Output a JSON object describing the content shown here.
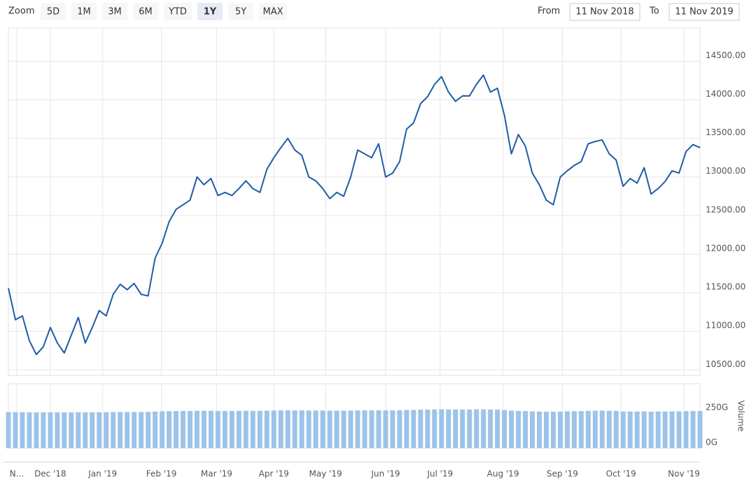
{
  "range_selector": {
    "zoom_label": "Zoom",
    "buttons": [
      "5D",
      "1M",
      "3M",
      "6M",
      "YTD",
      "1Y",
      "5Y",
      "MAX"
    ],
    "selected": "1Y",
    "from_label": "From",
    "from": "11 Nov 2018",
    "to_label": "To",
    "to": "11 Nov 2019"
  },
  "chart_data": {
    "type": "line",
    "xlim": [
      0,
      99
    ],
    "xticks": [
      {
        "value": 1.2,
        "label": "N..."
      },
      {
        "value": 6,
        "label": "Dec '18"
      },
      {
        "value": 13.5,
        "label": "Jan '19"
      },
      {
        "value": 21.9,
        "label": "Feb '19"
      },
      {
        "value": 29.8,
        "label": "Mar '19"
      },
      {
        "value": 38,
        "label": "Apr '19"
      },
      {
        "value": 45.4,
        "label": "May '19"
      },
      {
        "value": 54,
        "label": "Jun '19"
      },
      {
        "value": 61.8,
        "label": "Jul '19"
      },
      {
        "value": 70.8,
        "label": "Aug '19"
      },
      {
        "value": 79.3,
        "label": "Sep '19"
      },
      {
        "value": 87.7,
        "label": "Oct '19"
      },
      {
        "value": 96.7,
        "label": "Nov '19"
      }
    ],
    "ylim": [
      10430,
      14930
    ],
    "yticks": [
      {
        "value": 10500,
        "label": "10500.00"
      },
      {
        "value": 11000,
        "label": "11000.00"
      },
      {
        "value": 11500,
        "label": "11500.00"
      },
      {
        "value": 12000,
        "label": "12000.00"
      },
      {
        "value": 12500,
        "label": "12500.00"
      },
      {
        "value": 13000,
        "label": "13000.00"
      },
      {
        "value": 13500,
        "label": "13500.00"
      },
      {
        "value": 14000,
        "label": "14000.00"
      },
      {
        "value": 14500,
        "label": "14500.00"
      }
    ],
    "y2label": "Volume",
    "y2lim": [
      0,
      460
    ],
    "y2ticks": [
      {
        "value": 0,
        "label": "0G"
      },
      {
        "value": 250,
        "label": "250G"
      }
    ],
    "grid": true,
    "series": [
      {
        "color": "#1f5ca8",
        "values": [
          11560,
          11150,
          11200,
          10880,
          10700,
          10800,
          11050,
          10850,
          10720,
          10950,
          11180,
          10850,
          11050,
          11270,
          11200,
          11480,
          11610,
          11540,
          11620,
          11480,
          11460,
          11950,
          12140,
          12420,
          12580,
          12640,
          12700,
          13000,
          12900,
          12980,
          12760,
          12800,
          12760,
          12850,
          12950,
          12850,
          12800,
          13100,
          13250,
          13380,
          13500,
          13350,
          13280,
          13000,
          12950,
          12850,
          12720,
          12800,
          12750,
          13000,
          13350,
          13300,
          13250,
          13430,
          13000,
          13050,
          13200,
          13620,
          13700,
          13950,
          14040,
          14200,
          14300,
          14100,
          13980,
          14050,
          14050,
          14200,
          14320,
          14100,
          14150,
          13800,
          13300,
          13550,
          13400,
          13050,
          12900,
          12700,
          12640,
          13000,
          13080,
          13150,
          13200,
          13430,
          13460,
          13480,
          13300,
          13220,
          12880,
          12980,
          12920,
          13120,
          12780,
          12850,
          12940,
          13080,
          13050,
          13330,
          13420,
          13380
        ]
      },
      {
        "type": "column",
        "axis": "y2",
        "color": "#9cc3ea",
        "values": [
          258,
          257,
          257,
          256,
          255,
          255,
          256,
          256,
          255,
          256,
          257,
          256,
          256,
          257,
          257,
          258,
          258,
          258,
          258,
          258,
          259,
          262,
          263,
          264,
          265,
          266,
          266,
          267,
          267,
          267,
          266,
          266,
          266,
          266,
          267,
          267,
          267,
          268,
          269,
          270,
          270,
          270,
          270,
          269,
          269,
          269,
          268,
          268,
          268,
          269,
          270,
          270,
          270,
          271,
          270,
          270,
          271,
          273,
          273,
          275,
          276,
          277,
          278,
          277,
          276,
          276,
          276,
          277,
          277,
          276,
          276,
          273,
          268,
          266,
          265,
          263,
          262,
          261,
          261,
          262,
          263,
          264,
          265,
          267,
          268,
          268,
          267,
          266,
          262,
          262,
          262,
          263,
          261,
          262,
          262,
          263,
          263,
          265,
          266,
          266
        ]
      }
    ]
  }
}
